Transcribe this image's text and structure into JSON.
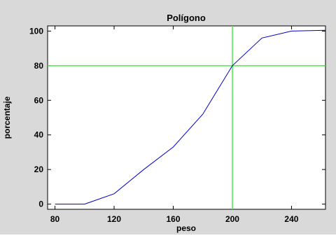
{
  "chart_data": {
    "type": "line",
    "title": "Polígono",
    "xlabel": "peso",
    "ylabel": "porcentaje",
    "xlim": [
      75,
      263
    ],
    "ylim": [
      -3,
      103
    ],
    "xticks": [
      80,
      120,
      160,
      200,
      240
    ],
    "yticks": [
      0,
      20,
      40,
      60,
      80,
      100
    ],
    "grid": false,
    "series": [
      {
        "color": "#0000cc",
        "x": [
          80,
          100,
          120,
          140,
          160,
          180,
          200,
          220,
          240,
          263
        ],
        "y": [
          0,
          0,
          6,
          20,
          33,
          52,
          80,
          96,
          100,
          100.5
        ]
      }
    ],
    "reference_lines": {
      "color": "#44ee44",
      "vertical_x": 200,
      "horizontal_y": 80
    },
    "colors": {
      "background": "#d9d9d9",
      "plot_area": "#ffffff"
    }
  }
}
